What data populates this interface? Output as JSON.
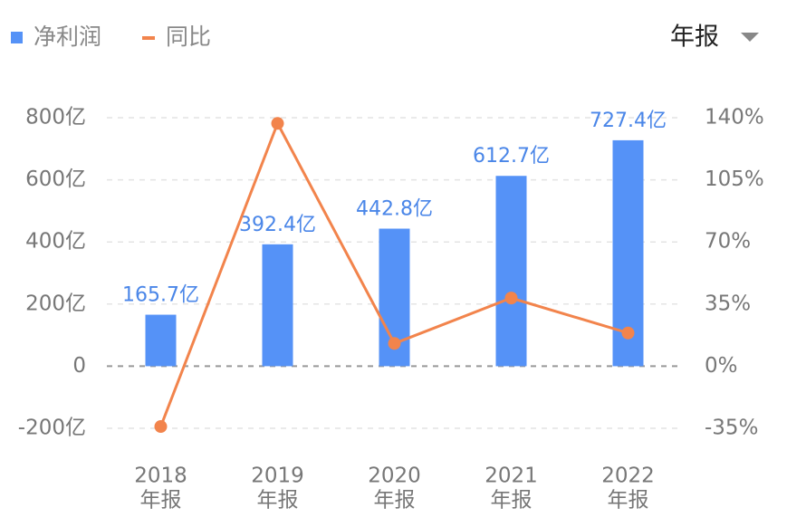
{
  "chart_data": {
    "type": "bar_line",
    "legend": [
      "净利润",
      "同比"
    ],
    "period_selector": "年报",
    "categories": [
      "2018",
      "2019",
      "2020",
      "2021",
      "2022"
    ],
    "period_labels": [
      "年报",
      "年报",
      "年报",
      "年报",
      "年报"
    ],
    "series": [
      {
        "name": "净利润",
        "type": "bar",
        "color": "#5592f7",
        "values": [
          165.7,
          392.4,
          442.8,
          612.7,
          727.4
        ],
        "value_labels": [
          "165.7亿",
          "392.4亿",
          "442.8亿",
          "612.7亿",
          "727.4亿"
        ]
      },
      {
        "name": "同比",
        "type": "line",
        "axis": "y2",
        "color": "#f2844c",
        "values": [
          -34,
          136.8,
          12.8,
          38.4,
          18.7
        ]
      }
    ],
    "ylim": [
      -200,
      800
    ],
    "yticks": [
      {
        "value": -200,
        "label": "-200亿"
      },
      0,
      {
        "value": 200,
        "label": "200亿"
      },
      {
        "value": 400,
        "label": "400亿"
      },
      {
        "value": 600,
        "label": "600亿"
      },
      {
        "value": 800,
        "label": "800亿"
      }
    ],
    "y2lim": [
      -35,
      140
    ],
    "y2ticks": [
      {
        "value": -35,
        "label": "-35%"
      },
      {
        "value": 0,
        "label": "0%"
      },
      {
        "value": 35,
        "label": "35%"
      },
      {
        "value": 70,
        "label": "70%"
      },
      {
        "value": 105,
        "label": "105%"
      },
      {
        "value": 140,
        "label": "140%"
      }
    ],
    "grid": true
  }
}
